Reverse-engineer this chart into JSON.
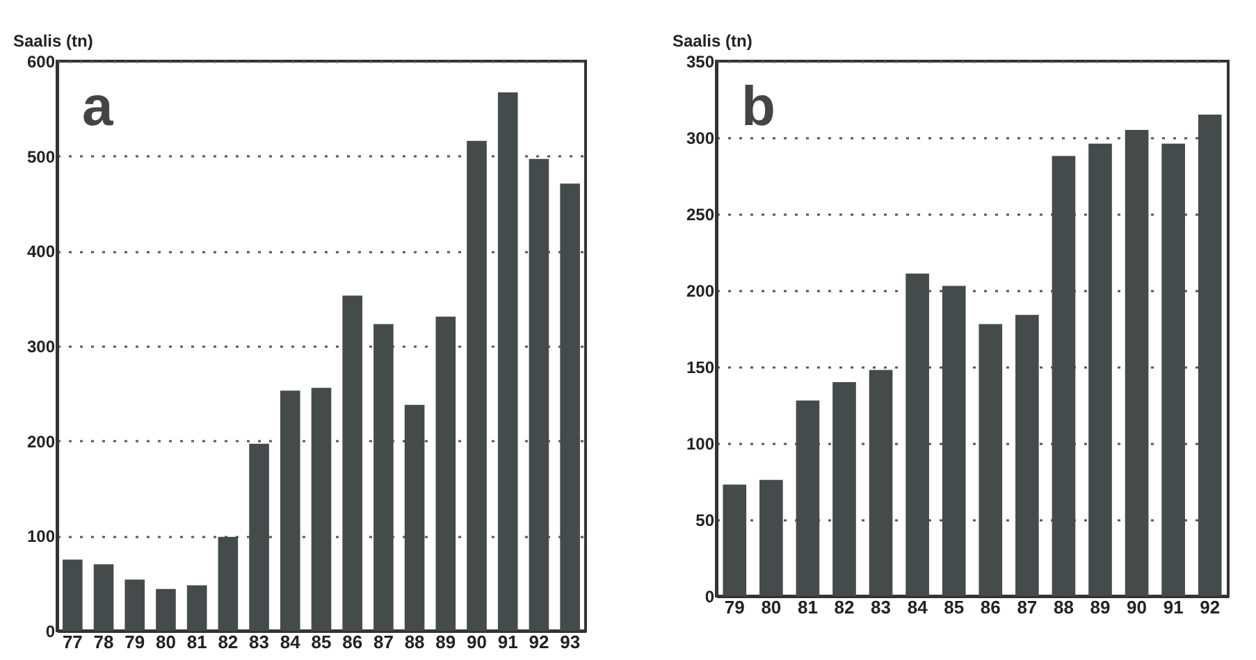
{
  "chart_data": [
    {
      "type": "bar",
      "ylabel": "Saalis (tn)",
      "annotations": [
        "a"
      ],
      "categories": [
        "77",
        "78",
        "79",
        "80",
        "81",
        "82",
        "83",
        "84",
        "85",
        "86",
        "87",
        "88",
        "89",
        "90",
        "91",
        "92",
        "93"
      ],
      "series": [
        {
          "color": "#454a4a",
          "values": [
            75,
            70,
            54,
            44,
            48,
            99,
            197,
            253,
            256,
            353,
            323,
            238,
            331,
            516,
            567,
            497,
            471
          ]
        }
      ],
      "ylim": [
        0,
        600
      ],
      "yticks": [
        0,
        100,
        200,
        300,
        400,
        500,
        600
      ],
      "grid": "y"
    },
    {
      "type": "bar",
      "ylabel": "Saalis (tn)",
      "annotations": [
        "b"
      ],
      "categories": [
        "79",
        "80",
        "81",
        "82",
        "83",
        "84",
        "85",
        "86",
        "87",
        "88",
        "89",
        "90",
        "91",
        "92"
      ],
      "series": [
        {
          "color": "#454a4a",
          "values": [
            73,
            76,
            128,
            140,
            148,
            211,
            203,
            178,
            184,
            288,
            296,
            305,
            296,
            315
          ]
        }
      ],
      "ylim": [
        0,
        350
      ],
      "yticks": [
        0,
        50,
        100,
        150,
        200,
        250,
        300,
        350
      ],
      "grid": "y"
    }
  ]
}
